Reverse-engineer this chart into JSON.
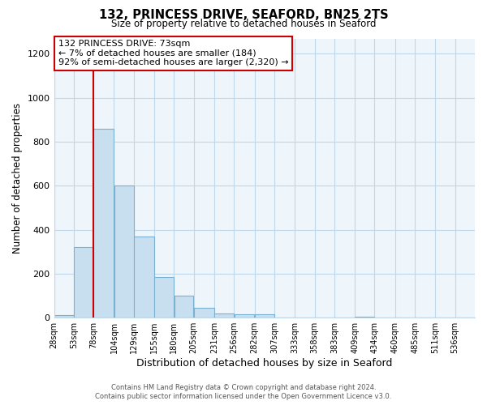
{
  "title_line1": "132, PRINCESS DRIVE, SEAFORD, BN25 2TS",
  "title_line2": "Size of property relative to detached houses in Seaford",
  "xlabel": "Distribution of detached houses by size in Seaford",
  "ylabel": "Number of detached properties",
  "bin_labels": [
    "28sqm",
    "53sqm",
    "78sqm",
    "104sqm",
    "129sqm",
    "155sqm",
    "180sqm",
    "205sqm",
    "231sqm",
    "256sqm",
    "282sqm",
    "307sqm",
    "333sqm",
    "358sqm",
    "383sqm",
    "409sqm",
    "434sqm",
    "460sqm",
    "485sqm",
    "511sqm",
    "536sqm"
  ],
  "bin_left_edges": [
    28,
    53,
    78,
    104,
    129,
    155,
    180,
    205,
    231,
    256,
    282,
    307,
    333,
    358,
    383,
    409,
    434,
    460,
    485,
    511,
    536
  ],
  "bin_widths": [
    25,
    25,
    26,
    25,
    26,
    25,
    25,
    26,
    25,
    26,
    25,
    26,
    25,
    25,
    26,
    25,
    26,
    25,
    26,
    25,
    25
  ],
  "bar_heights": [
    10,
    320,
    860,
    600,
    370,
    185,
    100,
    45,
    20,
    15,
    15,
    0,
    0,
    0,
    0,
    5,
    0,
    0,
    0,
    0,
    0
  ],
  "bar_fill_color": "#c8dff0",
  "bar_edge_color": "#7ab0d0",
  "plot_bg_color": "#eef5fb",
  "reference_line_x": 78,
  "reference_line_color": "#cc0000",
  "ylim": [
    0,
    1270
  ],
  "yticks": [
    0,
    200,
    400,
    600,
    800,
    1000,
    1200
  ],
  "annotation_title": "132 PRINCESS DRIVE: 73sqm",
  "annotation_line1": "← 7% of detached houses are smaller (184)",
  "annotation_line2": "92% of semi-detached houses are larger (2,320) →",
  "annotation_box_color": "#ffffff",
  "annotation_box_edge_color": "#cc0000",
  "footer_line1": "Contains HM Land Registry data © Crown copyright and database right 2024.",
  "footer_line2": "Contains public sector information licensed under the Open Government Licence v3.0.",
  "background_color": "#ffffff",
  "grid_color": "#c0d8ec"
}
